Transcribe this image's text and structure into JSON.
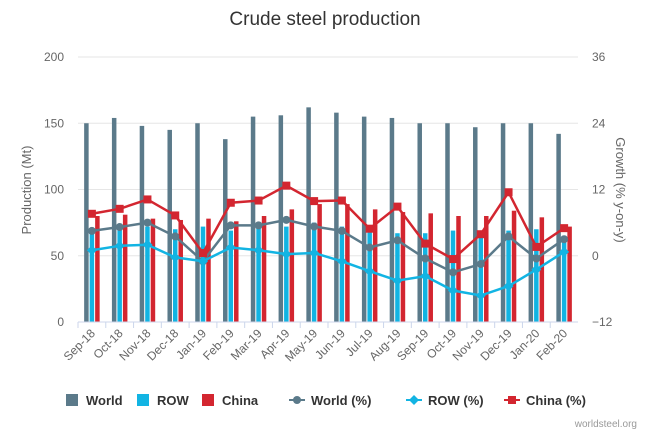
{
  "chart_data": {
    "type": "bar",
    "title": "Crude steel production",
    "ylabel": "Production (Mt)",
    "y2label": "Growth (% y-on-y)",
    "ylim": [
      0,
      200
    ],
    "y2lim": [
      -12,
      36
    ],
    "y_ticks": [
      "0",
      "50",
      "100",
      "150",
      "200"
    ],
    "y2_ticks": [
      "−12",
      "0",
      "12",
      "24",
      "36"
    ],
    "categories": [
      "Sep-18",
      "Oct-18",
      "Nov-18",
      "Dec-18",
      "Jan-19",
      "Feb-19",
      "Mar-19",
      "Apr-19",
      "May-19",
      "Jun-19",
      "Jul-19",
      "Aug-19",
      "Sep-19",
      "Oct-19",
      "Nov-19",
      "Dec-19",
      "Jan-20",
      "Feb-20"
    ],
    "bar_series": [
      {
        "name": "World",
        "color": "#5b7a8a",
        "values": [
          150,
          154,
          148,
          145,
          150,
          138,
          155,
          156,
          162,
          158,
          155,
          154,
          150,
          150,
          147,
          150,
          150,
          142
        ]
      },
      {
        "name": "ROW",
        "color": "#12b4e3",
        "values": [
          68,
          72,
          72,
          70,
          72,
          69,
          75,
          72,
          75,
          72,
          68,
          67,
          67,
          69,
          67,
          69,
          70,
          65
        ]
      },
      {
        "name": "China",
        "color": "#d32630",
        "values": [
          80,
          81,
          78,
          77,
          78,
          76,
          80,
          85,
          89,
          89,
          85,
          83,
          82,
          80,
          80,
          84,
          79,
          72
        ]
      }
    ],
    "line_series": [
      {
        "name": "World (%)",
        "color": "#5b7a8a",
        "marker": "circle",
        "values": [
          4.5,
          5.2,
          6.0,
          3.5,
          -1.0,
          5.5,
          5.5,
          6.5,
          5.3,
          4.5,
          1.5,
          2.8,
          -0.5,
          -3.0,
          -1.5,
          3.5,
          -0.5,
          3.0
        ]
      },
      {
        "name": "ROW (%)",
        "color": "#12b4e3",
        "marker": "diamond",
        "values": [
          1.0,
          1.8,
          2.0,
          -0.3,
          -1.0,
          1.5,
          1.0,
          0.3,
          0.5,
          -1.0,
          -2.8,
          -4.5,
          -3.7,
          -6.3,
          -7.2,
          -5.5,
          -2.5,
          0.7
        ]
      },
      {
        "name": "China (%)",
        "color": "#d32630",
        "marker": "square",
        "values": [
          7.6,
          8.5,
          10.2,
          7.3,
          0.5,
          9.6,
          10.0,
          12.7,
          9.9,
          10.0,
          4.9,
          8.9,
          2.2,
          -0.6,
          3.9,
          11.5,
          1.6,
          5.0
        ]
      }
    ],
    "legend": [
      "World",
      "ROW",
      "China",
      "World (%)",
      "ROW (%)",
      "China (%)"
    ],
    "legend_position": "bottom",
    "grid": true
  },
  "credit": "worldsteel.org"
}
